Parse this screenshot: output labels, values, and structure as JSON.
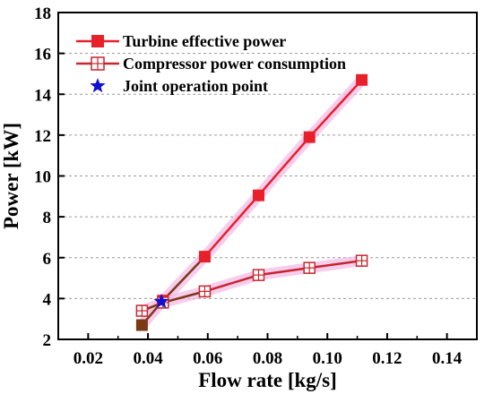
{
  "chart_data": {
    "type": "line",
    "xlabel": "Flow rate [kg/s]",
    "ylabel": "Power [kW]",
    "xlim": [
      0.01,
      0.15
    ],
    "ylim": [
      2,
      18
    ],
    "xticks": [
      0.02,
      0.04,
      0.06,
      0.08,
      0.1,
      0.12,
      0.14
    ],
    "xtick_labels": [
      "0.02",
      "0.04",
      "0.06",
      "0.08",
      "0.10",
      "0.12",
      "0.14"
    ],
    "yticks": [
      2,
      4,
      6,
      8,
      10,
      12,
      14,
      16,
      18
    ],
    "ytick_labels": [
      "2",
      "4",
      "6",
      "8",
      "10",
      "12",
      "14",
      "16",
      "18"
    ],
    "grid": "horizontal dashed",
    "legend_position": "top-left",
    "series": [
      {
        "name": "Turbine effective power",
        "marker": "filled-square",
        "color": "#e8202a",
        "x": [
          0.038,
          0.045,
          0.059,
          0.077,
          0.094,
          0.1115
        ],
        "y": [
          2.7,
          3.9,
          6.05,
          9.05,
          11.9,
          14.7
        ]
      },
      {
        "name": "Compressor power consumption",
        "marker": "crossed-square",
        "color": "#c6262e",
        "x": [
          0.038,
          0.045,
          0.059,
          0.077,
          0.094,
          0.1115
        ],
        "y": [
          3.4,
          3.8,
          4.35,
          5.15,
          5.5,
          5.85
        ]
      },
      {
        "name": "Joint operation point",
        "marker": "star",
        "color": "#1010d0",
        "x": [
          0.0445
        ],
        "y": [
          3.85
        ]
      }
    ],
    "highlight_color": "#7a3a14",
    "glow_color": "#f3b6e6"
  }
}
